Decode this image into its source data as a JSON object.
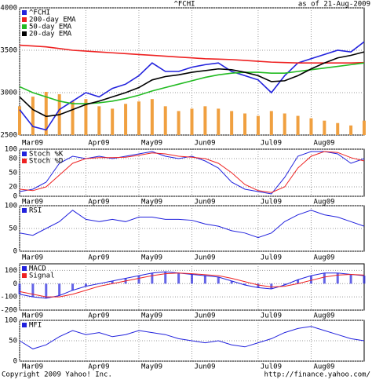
{
  "chart_data": [
    {
      "type": "line",
      "title": "^FCHI",
      "subtitle": "as of 21-Aug-2009",
      "categories": [
        "Mar09",
        null,
        null,
        null,
        null,
        "Apr09",
        null,
        null,
        null,
        "May09",
        null,
        null,
        null,
        "Jun09",
        null,
        null,
        null,
        null,
        "Jul09",
        null,
        null,
        null,
        "Aug09",
        null,
        null,
        null,
        null
      ],
      "ylim": [
        2500,
        4000
      ],
      "yticks": [
        2500,
        3000,
        3500,
        4000
      ],
      "grid": true,
      "series": [
        {
          "name": "^FCHI",
          "color": "#2222dd",
          "values": [
            2800,
            2600,
            2560,
            2800,
            2900,
            3000,
            2950,
            3050,
            3100,
            3200,
            3350,
            3250,
            3250,
            3300,
            3330,
            3350,
            3250,
            3200,
            3150,
            3000,
            3200,
            3350,
            3400,
            3450,
            3500,
            3480,
            3600
          ]
        },
        {
          "name": "200-day EMA",
          "color": "#ee2222",
          "values": [
            3560,
            3550,
            3540,
            3520,
            3500,
            3490,
            3480,
            3470,
            3460,
            3450,
            3440,
            3430,
            3420,
            3410,
            3400,
            3395,
            3390,
            3380,
            3370,
            3360,
            3355,
            3350,
            3350,
            3350,
            3350,
            3350,
            3355
          ]
        },
        {
          "name": "50-day EMA",
          "color": "#22bb22",
          "values": [
            3070,
            3000,
            2950,
            2900,
            2870,
            2870,
            2880,
            2900,
            2930,
            2970,
            3020,
            3060,
            3100,
            3140,
            3180,
            3210,
            3230,
            3240,
            3240,
            3230,
            3230,
            3250,
            3270,
            3290,
            3310,
            3330,
            3350
          ]
        },
        {
          "name": "20-day EMA",
          "color": "#000000",
          "values": [
            2950,
            2800,
            2720,
            2740,
            2800,
            2860,
            2900,
            2950,
            3000,
            3060,
            3150,
            3190,
            3210,
            3240,
            3260,
            3280,
            3270,
            3240,
            3200,
            3130,
            3140,
            3200,
            3280,
            3350,
            3410,
            3440,
            3480
          ]
        }
      ],
      "volume": {
        "color": "#f0a040",
        "values": [
          60,
          80,
          90,
          85,
          70,
          75,
          60,
          55,
          65,
          70,
          75,
          60,
          50,
          55,
          60,
          55,
          50,
          45,
          40,
          50,
          45,
          40,
          35,
          30,
          25,
          20,
          30
        ]
      }
    },
    {
      "type": "line",
      "categories": [
        "Mar09",
        null,
        null,
        null,
        null,
        "Apr09",
        null,
        null,
        null,
        "May09",
        null,
        null,
        null,
        "Jun09",
        null,
        null,
        null,
        null,
        "Jul09",
        null,
        null,
        null,
        "Aug09",
        null,
        null,
        null,
        null
      ],
      "ylim": [
        0,
        100
      ],
      "yticks": [
        0,
        20,
        50,
        80,
        100
      ],
      "grid": true,
      "series": [
        {
          "name": "Stoch %K",
          "color": "#2222dd",
          "values": [
            10,
            15,
            30,
            70,
            85,
            80,
            85,
            80,
            85,
            90,
            95,
            85,
            80,
            85,
            75,
            60,
            30,
            15,
            10,
            5,
            40,
            85,
            95,
            95,
            90,
            70,
            80
          ]
        },
        {
          "name": "Stoch %D",
          "color": "#ee2222",
          "values": [
            15,
            12,
            20,
            45,
            70,
            80,
            82,
            82,
            83,
            87,
            92,
            90,
            85,
            83,
            80,
            70,
            50,
            25,
            12,
            8,
            20,
            60,
            85,
            95,
            93,
            82,
            75
          ]
        }
      ]
    },
    {
      "type": "line",
      "categories": [
        "Mar09",
        null,
        null,
        null,
        null,
        "Apr09",
        null,
        null,
        null,
        "May09",
        null,
        null,
        null,
        "Jun09",
        null,
        null,
        null,
        null,
        "Jul09",
        null,
        null,
        null,
        "Aug09",
        null,
        null,
        null,
        null
      ],
      "ylim": [
        0,
        100
      ],
      "yticks": [
        0,
        50,
        100
      ],
      "grid": true,
      "series": [
        {
          "name": "RSI",
          "color": "#2222dd",
          "values": [
            40,
            35,
            50,
            65,
            90,
            70,
            65,
            70,
            65,
            75,
            75,
            70,
            70,
            68,
            60,
            55,
            45,
            40,
            30,
            40,
            65,
            80,
            90,
            80,
            75,
            65,
            55
          ]
        }
      ]
    },
    {
      "type": "line",
      "histogram": true,
      "categories": [
        "Mar09",
        null,
        null,
        null,
        null,
        "Apr09",
        null,
        null,
        null,
        "May09",
        null,
        null,
        null,
        "Jun09",
        null,
        null,
        null,
        null,
        "Jul09",
        null,
        null,
        null,
        "Aug09",
        null,
        null,
        null,
        null
      ],
      "ylim": [
        -200,
        150
      ],
      "yticks": [
        -200,
        -100,
        0,
        100
      ],
      "grid": true,
      "series": [
        {
          "name": "MACD",
          "color": "#2222dd",
          "values": [
            -80,
            -100,
            -110,
            -90,
            -50,
            -20,
            0,
            20,
            40,
            60,
            80,
            90,
            80,
            70,
            60,
            50,
            20,
            -10,
            -30,
            -40,
            -10,
            30,
            60,
            80,
            80,
            70,
            60
          ]
        },
        {
          "name": "Signal",
          "color": "#ee2222",
          "values": [
            -60,
            -80,
            -100,
            -100,
            -80,
            -50,
            -20,
            0,
            20,
            40,
            60,
            75,
            80,
            75,
            68,
            60,
            40,
            15,
            -10,
            -25,
            -20,
            0,
            25,
            50,
            65,
            70,
            65
          ]
        }
      ]
    },
    {
      "type": "line",
      "categories": [
        "Mar09",
        null,
        null,
        null,
        null,
        "Apr09",
        null,
        null,
        null,
        "May09",
        null,
        null,
        null,
        "Jun09",
        null,
        null,
        null,
        null,
        "Jul09",
        null,
        null,
        null,
        "Aug09",
        null,
        null,
        null,
        null
      ],
      "ylim": [
        0,
        100
      ],
      "yticks": [
        0,
        50,
        100
      ],
      "grid": true,
      "series": [
        {
          "name": "MFI",
          "color": "#2222dd",
          "values": [
            50,
            30,
            40,
            60,
            75,
            65,
            70,
            60,
            65,
            75,
            70,
            65,
            55,
            50,
            45,
            50,
            40,
            35,
            45,
            55,
            70,
            80,
            85,
            75,
            65,
            55,
            50
          ]
        }
      ]
    }
  ],
  "copyright": "Copyright 2009 Yahoo! Inc.",
  "source": "http://finance.yahoo.com/"
}
